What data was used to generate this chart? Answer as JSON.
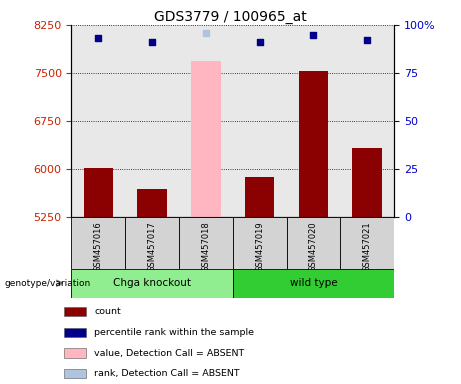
{
  "title": "GDS3779 / 100965_at",
  "samples": [
    "GSM457016",
    "GSM457017",
    "GSM457018",
    "GSM457019",
    "GSM457020",
    "GSM457021"
  ],
  "count_values": [
    6020,
    5680,
    null,
    5870,
    7530,
    6330
  ],
  "count_absent": [
    null,
    null,
    7680,
    null,
    null,
    null
  ],
  "percentile_values": [
    93,
    91,
    null,
    91,
    95,
    92
  ],
  "percentile_absent": [
    null,
    null,
    96,
    null,
    null,
    null
  ],
  "ylim_left": [
    5250,
    8250
  ],
  "ylim_right": [
    0,
    100
  ],
  "yticks_left": [
    5250,
    6000,
    6750,
    7500,
    8250
  ],
  "yticks_right": [
    0,
    25,
    50,
    75,
    100
  ],
  "ytick_right_labels": [
    "0",
    "25",
    "50",
    "75",
    "100%"
  ],
  "groups": [
    {
      "label": "Chga knockout",
      "indices": [
        0,
        1,
        2
      ],
      "color": "#90EE90"
    },
    {
      "label": "wild type",
      "indices": [
        3,
        4,
        5
      ],
      "color": "#32CD32"
    }
  ],
  "bar_color_present": "#8B0000",
  "bar_color_absent": "#FFB6C1",
  "dot_color_present": "#00008B",
  "dot_color_absent": "#B0C4DE",
  "bar_width": 0.55,
  "plot_bg_color": "#E8E8E8",
  "left_label_color": "#CC2200",
  "right_label_color": "#0000CC",
  "genotype_label": "genotype/variation",
  "legend_items": [
    {
      "label": "count",
      "color": "#8B0000"
    },
    {
      "label": "percentile rank within the sample",
      "color": "#00008B"
    },
    {
      "label": "value, Detection Call = ABSENT",
      "color": "#FFB6C1"
    },
    {
      "label": "rank, Detection Call = ABSENT",
      "color": "#B0C4DE"
    }
  ]
}
